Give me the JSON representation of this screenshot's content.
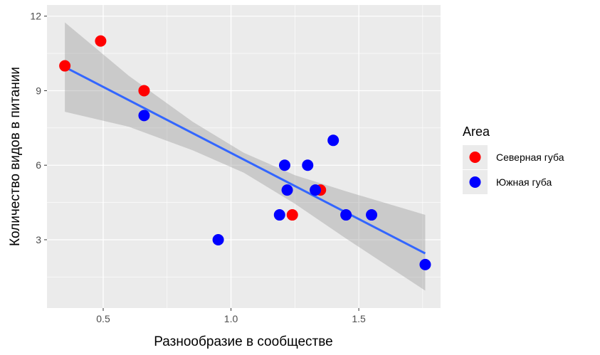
{
  "chart_data": {
    "type": "scatter",
    "title": "",
    "xlabel": "Разнообразие в сообществе",
    "ylabel": "Количество видов в питании",
    "xlim": [
      0.28,
      1.82
    ],
    "ylim": [
      0.25,
      12.45
    ],
    "x_ticks": [
      0.5,
      1.0,
      1.5
    ],
    "x_tick_labels": [
      "0.5",
      "1.0",
      "1.5"
    ],
    "y_ticks": [
      3,
      6,
      9,
      12
    ],
    "y_tick_labels": [
      "3",
      "6",
      "9",
      "12"
    ],
    "grid": true,
    "legend": {
      "title": "Area",
      "position": "right",
      "entries": [
        {
          "label": "Северная губа",
          "color": "#ff0000"
        },
        {
          "label": "Южная губа",
          "color": "#0000ff"
        }
      ]
    },
    "series": [
      {
        "name": "Северная губа",
        "color": "#ff0000",
        "points": [
          {
            "x": 0.35,
            "y": 10
          },
          {
            "x": 0.49,
            "y": 11
          },
          {
            "x": 0.66,
            "y": 9
          },
          {
            "x": 1.24,
            "y": 4
          },
          {
            "x": 1.35,
            "y": 5
          }
        ]
      },
      {
        "name": "Южная губа",
        "color": "#0000ff",
        "points": [
          {
            "x": 0.66,
            "y": 8
          },
          {
            "x": 0.95,
            "y": 3
          },
          {
            "x": 1.19,
            "y": 4
          },
          {
            "x": 1.21,
            "y": 6
          },
          {
            "x": 1.22,
            "y": 5
          },
          {
            "x": 1.3,
            "y": 6
          },
          {
            "x": 1.33,
            "y": 5
          },
          {
            "x": 1.4,
            "y": 7
          },
          {
            "x": 1.45,
            "y": 4
          },
          {
            "x": 1.55,
            "y": 4
          },
          {
            "x": 1.76,
            "y": 2
          }
        ]
      }
    ],
    "trend_line": {
      "method": "linear",
      "color": "#3366ff",
      "points": [
        {
          "x": 0.35,
          "y": 9.95
        },
        {
          "x": 1.76,
          "y": 2.45
        }
      ],
      "confidence_band": {
        "color": "#999999",
        "upper": [
          {
            "x": 0.35,
            "y": 11.75
          },
          {
            "x": 0.6,
            "y": 9.6
          },
          {
            "x": 0.85,
            "y": 7.75
          },
          {
            "x": 1.05,
            "y": 6.5
          },
          {
            "x": 1.25,
            "y": 5.6
          },
          {
            "x": 1.45,
            "y": 4.95
          },
          {
            "x": 1.76,
            "y": 4.0
          }
        ],
        "lower": [
          {
            "x": 0.35,
            "y": 8.15
          },
          {
            "x": 0.6,
            "y": 7.55
          },
          {
            "x": 0.85,
            "y": 6.6
          },
          {
            "x": 1.05,
            "y": 5.7
          },
          {
            "x": 1.25,
            "y": 4.45
          },
          {
            "x": 1.45,
            "y": 3.05
          },
          {
            "x": 1.76,
            "y": 0.95
          }
        ]
      }
    }
  }
}
